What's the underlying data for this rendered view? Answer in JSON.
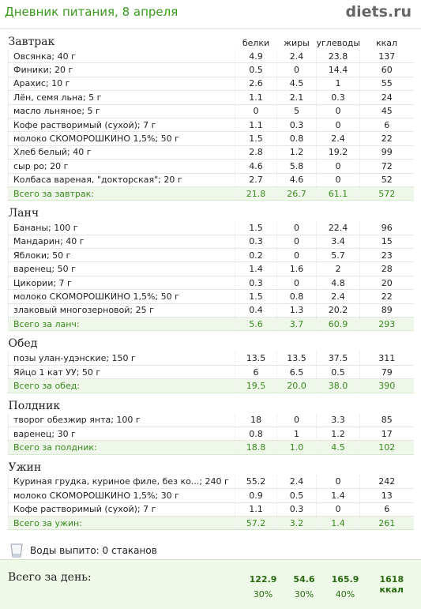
{
  "header": {
    "title": "Дневник питания, 8 апреля",
    "logo": "diets.ru"
  },
  "columns": [
    "белки",
    "жиры",
    "углеводы",
    "ккал"
  ],
  "meals": [
    {
      "name": "Завтрак",
      "rows": [
        [
          "Овсянка; 40 г",
          "4.9",
          "2.4",
          "23.8",
          "137"
        ],
        [
          "Финики; 20 г",
          "0.5",
          "0",
          "14.4",
          "60"
        ],
        [
          "Арахис; 10 г",
          "2.6",
          "4.5",
          "1",
          "55"
        ],
        [
          "Лён, семя льна; 5 г",
          "1.1",
          "2.1",
          "0.3",
          "24"
        ],
        [
          "масло льняное; 5 г",
          "0",
          "5",
          "0",
          "45"
        ],
        [
          "Кофе растворимый (сухой); 7 г",
          "1.1",
          "0.3",
          "0",
          "6"
        ],
        [
          "молоко СКОМОРОШКИНО 1,5%; 50 г",
          "1.5",
          "0.8",
          "2.4",
          "22"
        ],
        [
          "Хлеб белый; 40 г",
          "2.8",
          "1.2",
          "19.2",
          "99"
        ],
        [
          "сыр ро; 20 г",
          "4.6",
          "5.8",
          "0",
          "72"
        ],
        [
          "Колбаса вареная, \"докторская\"; 20 г",
          "2.7",
          "4.6",
          "0",
          "52"
        ]
      ],
      "total": [
        "Всего за завтрак:",
        "21.8",
        "26.7",
        "61.1",
        "572"
      ]
    },
    {
      "name": "Ланч",
      "rows": [
        [
          "Бананы; 100 г",
          "1.5",
          "0",
          "22.4",
          "96"
        ],
        [
          "Мандарин; 40 г",
          "0.3",
          "0",
          "3.4",
          "15"
        ],
        [
          "Яблоки; 50 г",
          "0.2",
          "0",
          "5.7",
          "23"
        ],
        [
          "варенец; 50 г",
          "1.4",
          "1.6",
          "2",
          "28"
        ],
        [
          "Цикории; 7 г",
          "0.3",
          "0",
          "4.8",
          "20"
        ],
        [
          "молоко СКОМОРОШКИНО 1,5%; 50 г",
          "1.5",
          "0.8",
          "2.4",
          "22"
        ],
        [
          "злаковый многозерновой; 25 г",
          "0.4",
          "1.3",
          "20.2",
          "89"
        ]
      ],
      "total": [
        "Всего за ланч:",
        "5.6",
        "3.7",
        "60.9",
        "293"
      ]
    },
    {
      "name": "Обед",
      "rows": [
        [
          "позы улан-удэнские; 150 г",
          "13.5",
          "13.5",
          "37.5",
          "311"
        ],
        [
          "Яйцо 1 кат УУ; 50 г",
          "6",
          "6.5",
          "0.5",
          "79"
        ]
      ],
      "total": [
        "Всего за обед:",
        "19.5",
        "20.0",
        "38.0",
        "390"
      ]
    },
    {
      "name": "Полдник",
      "rows": [
        [
          "творог обезжир янта; 100 г",
          "18",
          "0",
          "3.3",
          "85"
        ],
        [
          "варенец; 30 г",
          "0.8",
          "1",
          "1.2",
          "17"
        ]
      ],
      "total": [
        "Всего за полдник:",
        "18.8",
        "1.0",
        "4.5",
        "102"
      ]
    },
    {
      "name": "Ужин",
      "rows": [
        [
          "Куриная грудка, куриное филе, без ко...; 240 г",
          "55.2",
          "2.4",
          "0",
          "242"
        ],
        [
          "молоко СКОМОРОШКИНО 1,5%; 30 г",
          "0.9",
          "0.5",
          "1.4",
          "13"
        ],
        [
          "Кофе растворимый (сухой); 7 г",
          "1.1",
          "0.3",
          "0",
          "6"
        ]
      ],
      "total": [
        "Всего за ужин:",
        "57.2",
        "3.2",
        "1.4",
        "261"
      ]
    }
  ],
  "water": "Воды выпито: 0 стаканов",
  "day_total": {
    "label": "Всего за день:",
    "values": [
      "122.9",
      "54.6",
      "165.9",
      "1618 ккал"
    ],
    "percents": [
      "30%",
      "30%",
      "40%"
    ]
  }
}
